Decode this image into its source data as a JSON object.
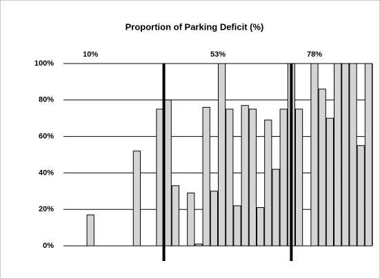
{
  "chart_data": {
    "type": "bar",
    "title": "Proportion of Parking Deficit (%)",
    "categories": [
      null,
      null,
      null,
      null,
      null,
      null,
      null,
      null,
      null,
      null,
      null,
      null,
      null,
      null,
      null,
      null,
      null,
      null,
      null,
      null,
      null,
      null,
      null,
      null,
      null,
      null,
      null,
      null,
      null,
      null,
      null,
      null,
      null,
      null,
      null,
      null,
      null,
      null,
      null,
      null
    ],
    "values": [
      0,
      0,
      0,
      17,
      0,
      0,
      0,
      0,
      0,
      52,
      0,
      0,
      75,
      80,
      33,
      0,
      29,
      1,
      76,
      30,
      100,
      75,
      22,
      77,
      75,
      21,
      69,
      42,
      75,
      100,
      75,
      0,
      100,
      86,
      70,
      100,
      100,
      100,
      55,
      100
    ],
    "color": "#d4d4d4",
    "ylim": [
      0,
      100
    ],
    "yticks": [
      {
        "value": 0,
        "label": "0%"
      },
      {
        "value": 20,
        "label": "20%"
      },
      {
        "value": 40,
        "label": "40%"
      },
      {
        "value": 60,
        "label": "60%"
      },
      {
        "value": 80,
        "label": "80%"
      },
      {
        "value": 100,
        "label": "100%"
      }
    ],
    "grid": true,
    "dividers": [
      13,
      29.5
    ],
    "annotations": [
      {
        "text": "10%",
        "x": 3.5
      },
      {
        "text": "53%",
        "x": 20
      },
      {
        "text": "78%",
        "x": 32.5
      }
    ]
  }
}
